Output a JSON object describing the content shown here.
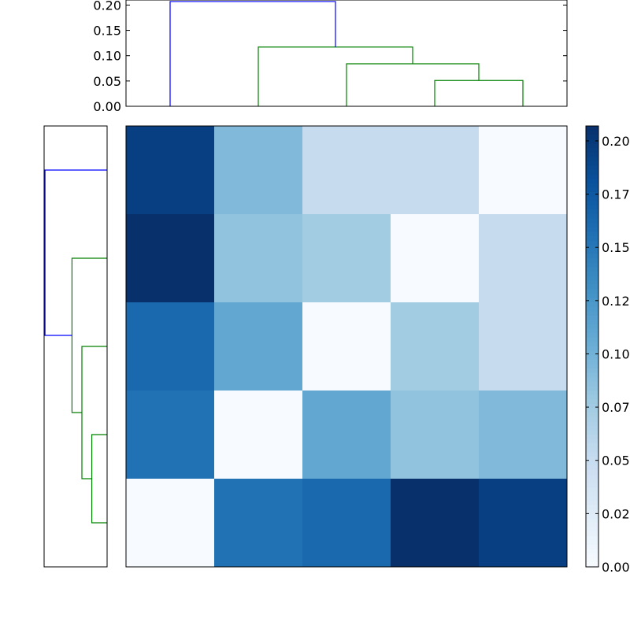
{
  "chart_data": [
    {
      "type": "dendrogram",
      "orientation": "top",
      "ylim": [
        0,
        0.21
      ],
      "y_ticks": [
        "0.00",
        "0.05",
        "0.10",
        "0.15",
        "0.20"
      ],
      "leaf_positions": [
        0.5,
        1.5,
        2.5,
        3.5,
        4.5
      ],
      "links": [
        {
          "left_x": 3.5,
          "right_x": 4.5,
          "left_y": 0,
          "right_y": 0,
          "height": 0.051,
          "color": "#008000"
        },
        {
          "left_x": 2.5,
          "right_x": 4.0,
          "left_y": 0,
          "right_y": 0.051,
          "height": 0.084,
          "color": "#008000"
        },
        {
          "left_x": 1.5,
          "right_x": 3.25,
          "left_y": 0,
          "right_y": 0.084,
          "height": 0.117,
          "color": "#008000"
        },
        {
          "left_x": 0.5,
          "right_x": 2.375,
          "left_y": 0,
          "right_y": 0.117,
          "height": 0.207,
          "color": "#0000ff"
        }
      ]
    },
    {
      "type": "dendrogram",
      "orientation": "left",
      "xlim": [
        0.21,
        0
      ],
      "leaf_positions": [
        0.5,
        1.5,
        2.5,
        3.5,
        4.5
      ],
      "links": [
        {
          "left_x": 3.5,
          "right_x": 4.5,
          "left_y": 0,
          "right_y": 0,
          "height": 0.051,
          "color": "#008000"
        },
        {
          "left_x": 2.5,
          "right_x": 4.0,
          "left_y": 0,
          "right_y": 0.051,
          "height": 0.084,
          "color": "#008000"
        },
        {
          "left_x": 1.5,
          "right_x": 3.25,
          "left_y": 0,
          "right_y": 0.084,
          "height": 0.117,
          "color": "#008000"
        },
        {
          "left_x": 0.5,
          "right_x": 2.375,
          "left_y": 0,
          "right_y": 0.117,
          "height": 0.207,
          "color": "#0000ff"
        }
      ]
    },
    {
      "type": "heatmap",
      "colormap": "Blues",
      "vmin": 0,
      "vmax": 0.207,
      "rows": 5,
      "cols": 5,
      "values": [
        [
          0.195,
          0.093,
          0.051,
          0.051,
          0.0
        ],
        [
          0.207,
          0.084,
          0.075,
          0.0,
          0.051
        ],
        [
          0.162,
          0.11,
          0.0,
          0.075,
          0.051
        ],
        [
          0.155,
          0.0,
          0.11,
          0.084,
          0.093
        ],
        [
          0.0,
          0.155,
          0.162,
          0.207,
          0.195
        ]
      ]
    },
    {
      "type": "colorbar",
      "colormap": "Blues",
      "vmin": 0,
      "vmax": 0.207,
      "tick_values": [
        0.0,
        0.025,
        0.05,
        0.075,
        0.1,
        0.125,
        0.15,
        0.175,
        0.2
      ],
      "tick_labels": [
        "0.00",
        "0.02",
        "0.05",
        "0.07",
        "0.10",
        "0.12",
        "0.15",
        "0.17",
        "0.20"
      ]
    }
  ]
}
